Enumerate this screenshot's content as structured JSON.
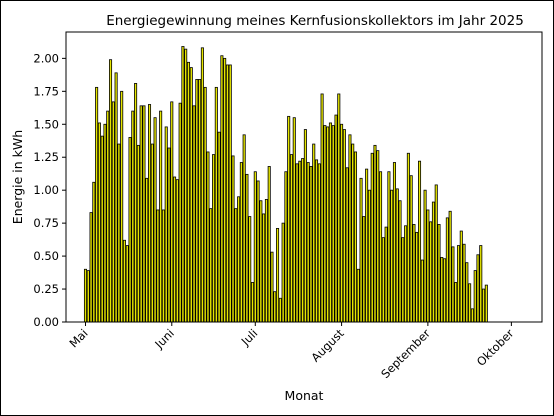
{
  "chart_data": {
    "type": "bar",
    "title": "Energiegewinnung meines Kernfusionskollektors im Jahr 2025",
    "xlabel": "Monat",
    "ylabel": "Energie in kWh",
    "x_start": "2025-05-01",
    "x_end": "2025-10-06",
    "xlim": [
      "2025-04-24",
      "2025-10-12"
    ],
    "ylim": [
      0,
      2.2
    ],
    "yticks": [
      "0.00",
      "0.25",
      "0.50",
      "0.75",
      "1.00",
      "1.25",
      "1.50",
      "1.75",
      "2.00"
    ],
    "xticks": [
      {
        "date": "2025-05-01",
        "label": "Mai"
      },
      {
        "date": "2025-06-01",
        "label": "Juni"
      },
      {
        "date": "2025-07-01",
        "label": "Juli"
      },
      {
        "date": "2025-08-01",
        "label": "August"
      },
      {
        "date": "2025-09-01",
        "label": "September"
      },
      {
        "date": "2025-10-01",
        "label": "Oktober"
      }
    ],
    "bar_color": "#e6e600",
    "edge_color": "#000000",
    "grid": false,
    "values": [
      0.4,
      0.39,
      0.83,
      1.06,
      1.78,
      1.51,
      1.41,
      1.5,
      1.6,
      1.99,
      1.67,
      1.89,
      1.35,
      1.75,
      0.62,
      0.58,
      1.4,
      1.6,
      1.81,
      1.34,
      1.64,
      1.64,
      1.09,
      1.65,
      1.35,
      1.55,
      0.85,
      1.6,
      0.85,
      1.48,
      1.32,
      1.67,
      1.1,
      1.08,
      1.66,
      2.09,
      2.07,
      1.97,
      1.93,
      1.64,
      1.84,
      1.84,
      2.08,
      1.78,
      1.29,
      0.86,
      1.27,
      1.78,
      1.44,
      2.02,
      2.0,
      1.95,
      1.95,
      1.26,
      0.86,
      0.95,
      1.21,
      1.42,
      1.12,
      0.8,
      0.3,
      1.14,
      1.07,
      0.92,
      0.82,
      0.93,
      1.18,
      0.53,
      0.23,
      0.71,
      0.18,
      0.75,
      1.14,
      1.56,
      1.27,
      1.55,
      1.2,
      1.22,
      1.24,
      1.46,
      1.21,
      1.18,
      1.35,
      1.23,
      1.2,
      1.73,
      1.49,
      1.48,
      1.51,
      1.49,
      1.57,
      1.73,
      1.5,
      1.46,
      1.17,
      1.42,
      1.35,
      1.29,
      0.4,
      1.09,
      0.8,
      1.16,
      1.0,
      1.28,
      1.34,
      1.3,
      1.14,
      0.64,
      0.72,
      1.14,
      1.0,
      1.21,
      1.01,
      0.92,
      0.64,
      0.73,
      1.28,
      1.11,
      0.74,
      0.68,
      1.22,
      0.47,
      1.0,
      0.85,
      0.76,
      0.91,
      1.04,
      0.74,
      0.49,
      0.48,
      0.79,
      0.84,
      0.57,
      0.3,
      0.58,
      0.69,
      0.59,
      0.45,
      0.29,
      0.1,
      0.39,
      0.51,
      0.58,
      0.25,
      0.28
    ]
  }
}
